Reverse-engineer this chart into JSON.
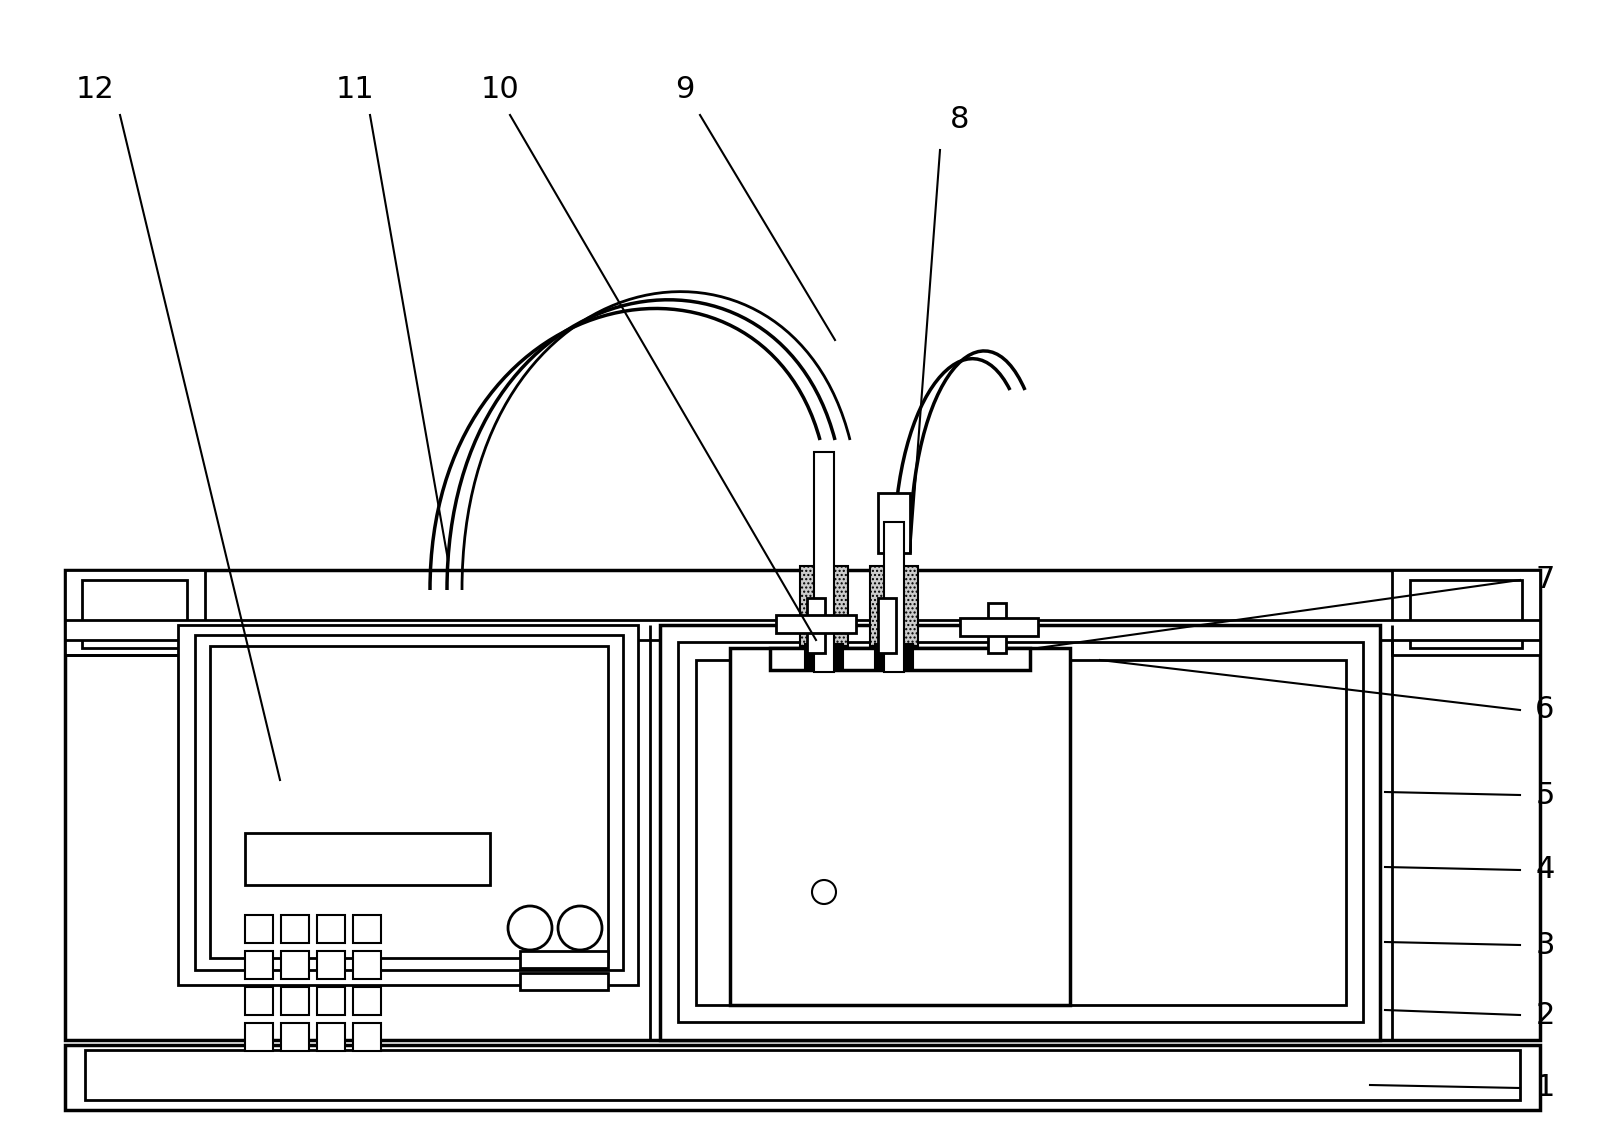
{
  "bg_color": "#ffffff",
  "lw": 2.0,
  "tlw": 2.5,
  "fig_width": 15.97,
  "fig_height": 11.34,
  "dpi": 100
}
